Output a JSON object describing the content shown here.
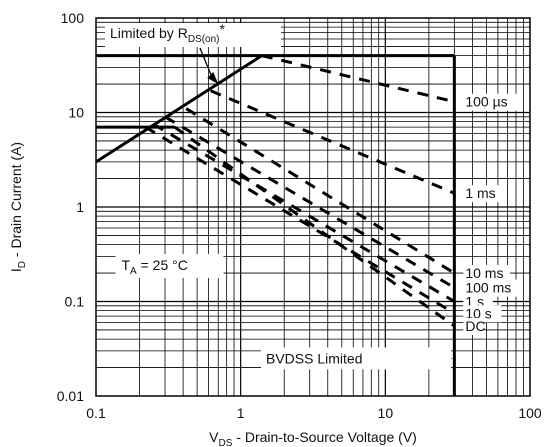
{
  "chart_data": {
    "type": "line",
    "xscale": "log",
    "yscale": "log",
    "xlim": [
      0.1,
      100
    ],
    "ylim": [
      0.01,
      100
    ],
    "grid": true,
    "x_ticks": [
      "0.1",
      "1",
      "10",
      "100"
    ],
    "y_ticks": [
      "0.01",
      "0.1",
      "1",
      "10",
      "100"
    ],
    "xlabel": {
      "main": "V",
      "sub": "DS",
      "rest": " - Drain-to-Source Voltage (V)"
    },
    "ylabel": {
      "main": "I",
      "sub": "D",
      "rest": " - Drain Current (A)"
    },
    "limits": {
      "rdson_line": {
        "x": [
          0.1,
          1.4
        ],
        "y": [
          3,
          40
        ]
      },
      "current_limit_A": 40,
      "current_limit_x": [
        0.1,
        30
      ],
      "bvdss_V": 30,
      "dc_current_A": 7,
      "dc_current_x": [
        0.1,
        0.35
      ]
    },
    "series": [
      {
        "name": "100 µs",
        "x": [
          1.4,
          30
        ],
        "y": [
          40,
          13
        ]
      },
      {
        "name": "1 ms",
        "x": [
          0.62,
          30
        ],
        "y": [
          17,
          1.4
        ]
      },
      {
        "name": "10 ms",
        "x": [
          0.42,
          30
        ],
        "y": [
          11,
          0.2
        ]
      },
      {
        "name": "100 ms",
        "x": [
          0.3,
          30
        ],
        "y": [
          9,
          0.14
        ]
      },
      {
        "name": "1 s",
        "x": [
          0.25,
          30
        ],
        "y": [
          7.5,
          0.1
        ]
      },
      {
        "name": "10 s",
        "x": [
          0.22,
          30
        ],
        "y": [
          7,
          0.075
        ]
      },
      {
        "name": "DC",
        "x": [
          0.35,
          30
        ],
        "y": [
          7,
          0.055
        ]
      }
    ],
    "annotations": {
      "rdson": {
        "main": "Limited by R",
        "sub": "DS(on)",
        "rest": "*"
      },
      "temp": {
        "main": "T",
        "sub": "A",
        "rest": " = 25 °C"
      },
      "bvdss": "BVDSS Limited"
    }
  }
}
